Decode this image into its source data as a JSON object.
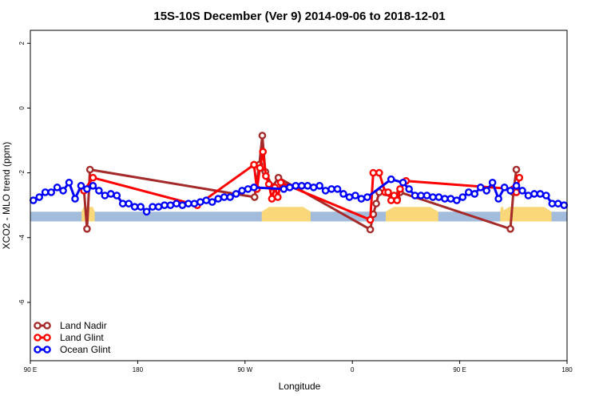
{
  "chart_data": {
    "type": "line",
    "title": "15S-10S December (Ver 9)   2014-09-06 to 2018-12-01",
    "xlabel": "Longitude",
    "ylabel": "XCO2 - MLO trend (ppm)",
    "xlim": [
      90,
      540
    ],
    "ylim": [
      -7.8,
      2.4
    ],
    "x_ticks": [
      {
        "value": 90,
        "label": "90 E"
      },
      {
        "value": 180,
        "label": "180"
      },
      {
        "value": 270,
        "label": "90 W"
      },
      {
        "value": 360,
        "label": "0"
      },
      {
        "value": 450,
        "label": "90 E"
      },
      {
        "value": 540,
        "label": "180"
      }
    ],
    "y_ticks": [
      {
        "value": 2,
        "label": "2"
      },
      {
        "value": 0,
        "label": "0"
      },
      {
        "value": -2,
        "label": "-2"
      },
      {
        "value": -4,
        "label": "-4"
      },
      {
        "value": -6,
        "label": "-6"
      }
    ],
    "background_band": {
      "ymin": -3.5,
      "ymax": -3.2,
      "ocean_color": "#a4bcdc",
      "land_color": "#fad87a"
    },
    "land_segments": [
      [
        133,
        144
      ],
      [
        284,
        325
      ],
      [
        388,
        432
      ],
      [
        484,
        487
      ],
      [
        485,
        527
      ]
    ],
    "legend_position": "bottom-left",
    "series": [
      {
        "name": "Land Nadir",
        "color": "#a52a2a",
        "x": [
          135,
          137.5,
          140,
          278,
          282,
          284.5,
          287,
          293,
          298,
          375,
          377.5,
          380,
          382.5,
          397.5,
          400,
          492.5,
          495,
          497.5
        ],
        "y": [
          -2.55,
          -3.73,
          -1.9,
          -2.75,
          -1.75,
          -0.85,
          -1.97,
          -2.43,
          -2.15,
          -3.75,
          -3.28,
          -2.95,
          -2.6,
          -2.8,
          -2.6,
          -3.73,
          -2.6,
          -1.9
        ]
      },
      {
        "name": "Land Glint",
        "color": "#ff0000",
        "x": [
          135,
          142.5,
          230,
          277.5,
          280,
          282.5,
          285,
          287.5,
          290,
          292.5,
          295,
          297.5,
          300,
          375,
          377.5,
          382.5,
          387.5,
          390,
          392.5,
          395,
          397.5,
          400,
          405,
          495,
          497.5,
          500
        ],
        "y": [
          -2.55,
          -2.15,
          -3.0,
          -1.75,
          -2.5,
          -1.85,
          -1.35,
          -2.1,
          -2.35,
          -2.8,
          -2.45,
          -2.75,
          -2.3,
          -3.45,
          -2.0,
          -2.0,
          -2.6,
          -2.6,
          -2.85,
          -2.7,
          -2.85,
          -2.5,
          -2.25,
          -2.5,
          -2.6,
          -2.15
        ]
      },
      {
        "name": "Ocean Glint",
        "color": "#0000ff",
        "x": [
          92.5,
          97.5,
          102.5,
          107.5,
          112.5,
          117.5,
          122.5,
          127.5,
          132.5,
          137.5,
          142.5,
          147.5,
          152.5,
          157.5,
          162.5,
          167.5,
          172.5,
          177.5,
          182.5,
          187.5,
          192.5,
          197.5,
          202.5,
          207.5,
          212.5,
          217.5,
          222.5,
          227.5,
          232.5,
          237.5,
          242.5,
          247.5,
          252.5,
          257.5,
          262.5,
          267.5,
          272.5,
          277.5,
          302.5,
          307.5,
          312.5,
          317.5,
          322.5,
          327.5,
          332.5,
          337.5,
          342.5,
          347.5,
          352.5,
          357.5,
          362.5,
          367.5,
          372.5,
          392.5,
          402.5,
          407.5,
          412.5,
          417.5,
          422.5,
          427.5,
          432.5,
          437.5,
          442.5,
          447.5,
          452.5,
          457.5,
          462.5,
          467.5,
          472.5,
          477.5,
          482.5,
          487.5,
          492.5,
          497.5,
          502.5,
          507.5,
          512.5,
          517.5,
          522.5,
          527.5,
          532.5,
          537.5
        ],
        "y": [
          -2.85,
          -2.75,
          -2.6,
          -2.6,
          -2.45,
          -2.55,
          -2.3,
          -2.8,
          -2.4,
          -2.5,
          -2.4,
          -2.55,
          -2.7,
          -2.65,
          -2.7,
          -2.95,
          -2.95,
          -3.05,
          -3.05,
          -3.2,
          -3.05,
          -3.05,
          -3.0,
          -3.0,
          -2.95,
          -3.0,
          -2.95,
          -2.95,
          -2.9,
          -2.85,
          -2.9,
          -2.8,
          -2.75,
          -2.75,
          -2.65,
          -2.55,
          -2.5,
          -2.45,
          -2.5,
          -2.45,
          -2.4,
          -2.4,
          -2.4,
          -2.45,
          -2.4,
          -2.55,
          -2.5,
          -2.5,
          -2.65,
          -2.75,
          -2.7,
          -2.8,
          -2.75,
          -2.2,
          -2.3,
          -2.5,
          -2.7,
          -2.7,
          -2.7,
          -2.75,
          -2.75,
          -2.8,
          -2.8,
          -2.85,
          -2.75,
          -2.6,
          -2.65,
          -2.45,
          -2.55,
          -2.3,
          -2.8,
          -2.45,
          -2.55,
          -2.4,
          -2.55,
          -2.7,
          -2.65,
          -2.65,
          -2.7,
          -2.95,
          -2.95,
          -3.0
        ]
      }
    ]
  }
}
